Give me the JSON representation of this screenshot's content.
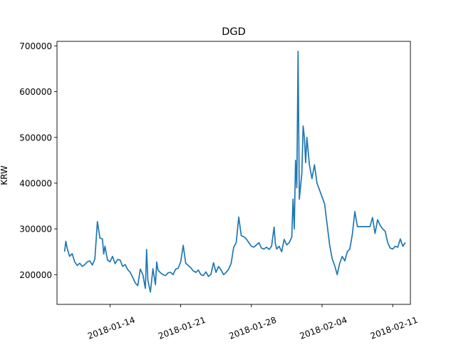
{
  "chart_data": {
    "type": "line",
    "title": "DGD",
    "xlabel": "",
    "ylabel": "KRW",
    "x_type": "date",
    "xlim": [
      "2018-01-08T18:00",
      "2018-02-12T18:00"
    ],
    "ylim": [
      135000,
      710000
    ],
    "x_ticks": [
      "2018-01-14",
      "2018-01-21",
      "2018-01-28",
      "2018-02-04",
      "2018-02-11"
    ],
    "y_ticks": [
      200000,
      300000,
      400000,
      500000,
      600000,
      700000
    ],
    "y_tick_labels": [
      "200000",
      "300000",
      "400000",
      "500000",
      "600000",
      "700000"
    ],
    "grid": false,
    "legend": "none",
    "line_color": "#1f77b4",
    "series": [
      {
        "x": [
          "2018-01-09T12:00",
          "2018-01-09T15:00",
          "2018-01-09T18:00",
          "2018-01-10T00:00",
          "2018-01-10T06:00",
          "2018-01-10T12:00",
          "2018-01-10T18:00",
          "2018-01-11T00:00",
          "2018-01-11T06:00",
          "2018-01-11T12:00",
          "2018-01-11T18:00",
          "2018-01-12T00:00",
          "2018-01-12T06:00",
          "2018-01-12T12:00",
          "2018-01-12T18:00",
          "2018-01-13T00:00",
          "2018-01-13T06:00",
          "2018-01-13T09:00",
          "2018-01-13T12:00",
          "2018-01-13T18:00",
          "2018-01-14T00:00",
          "2018-01-14T06:00",
          "2018-01-14T12:00",
          "2018-01-14T18:00",
          "2018-01-15T00:00",
          "2018-01-15T06:00",
          "2018-01-15T12:00",
          "2018-01-15T18:00",
          "2018-01-16T00:00",
          "2018-01-16T06:00",
          "2018-01-16T12:00",
          "2018-01-16T18:00",
          "2018-01-17T00:00",
          "2018-01-17T06:00",
          "2018-01-17T12:00",
          "2018-01-17T15:00",
          "2018-01-17T18:00",
          "2018-01-18T00:00",
          "2018-01-18T06:00",
          "2018-01-18T12:00",
          "2018-01-18T15:00",
          "2018-01-18T18:00",
          "2018-01-19T00:00",
          "2018-01-19T06:00",
          "2018-01-19T12:00",
          "2018-01-19T18:00",
          "2018-01-20T00:00",
          "2018-01-20T06:00",
          "2018-01-20T12:00",
          "2018-01-20T18:00",
          "2018-01-21T00:00",
          "2018-01-21T06:00",
          "2018-01-21T12:00",
          "2018-01-21T18:00",
          "2018-01-22T00:00",
          "2018-01-22T06:00",
          "2018-01-22T12:00",
          "2018-01-22T18:00",
          "2018-01-23T00:00",
          "2018-01-23T06:00",
          "2018-01-23T12:00",
          "2018-01-23T18:00",
          "2018-01-24T00:00",
          "2018-01-24T06:00",
          "2018-01-24T12:00",
          "2018-01-24T18:00",
          "2018-01-25T00:00",
          "2018-01-25T06:00",
          "2018-01-25T12:00",
          "2018-01-25T18:00",
          "2018-01-26T00:00",
          "2018-01-26T06:00",
          "2018-01-26T12:00",
          "2018-01-26T18:00",
          "2018-01-27T00:00",
          "2018-01-27T06:00",
          "2018-01-27T12:00",
          "2018-01-27T18:00",
          "2018-01-28T00:00",
          "2018-01-28T06:00",
          "2018-01-28T12:00",
          "2018-01-28T18:00",
          "2018-01-29T00:00",
          "2018-01-29T06:00",
          "2018-01-29T12:00",
          "2018-01-29T18:00",
          "2018-01-30T00:00",
          "2018-01-30T06:00",
          "2018-01-30T09:00",
          "2018-01-30T12:00",
          "2018-01-30T18:00",
          "2018-01-31T00:00",
          "2018-01-31T06:00",
          "2018-01-31T12:00",
          "2018-01-31T18:00",
          "2018-02-01T00:00",
          "2018-02-01T03:00",
          "2018-02-01T06:00",
          "2018-02-01T09:00",
          "2018-02-01T12:00",
          "2018-02-01T15:00",
          "2018-02-01T18:00",
          "2018-02-02T00:00",
          "2018-02-02T03:00",
          "2018-02-02T06:00",
          "2018-02-02T09:00",
          "2018-02-02T12:00",
          "2018-02-02T18:00",
          "2018-02-03T00:00",
          "2018-02-03T06:00",
          "2018-02-03T12:00",
          "2018-02-03T18:00",
          "2018-02-04T00:00",
          "2018-02-04T06:00",
          "2018-02-04T12:00",
          "2018-02-04T18:00",
          "2018-02-05T00:00",
          "2018-02-05T06:00",
          "2018-02-05T12:00",
          "2018-02-05T18:00",
          "2018-02-06T00:00",
          "2018-02-06T06:00",
          "2018-02-06T12:00",
          "2018-02-06T18:00",
          "2018-02-07T00:00",
          "2018-02-07T06:00",
          "2018-02-07T12:00",
          "2018-02-07T18:00",
          "2018-02-08T00:00",
          "2018-02-08T06:00",
          "2018-02-08T12:00",
          "2018-02-08T18:00",
          "2018-02-09T00:00",
          "2018-02-09T06:00",
          "2018-02-09T12:00",
          "2018-02-09T18:00",
          "2018-02-10T00:00",
          "2018-02-10T06:00",
          "2018-02-10T12:00",
          "2018-02-10T18:00",
          "2018-02-11T00:00",
          "2018-02-11T06:00",
          "2018-02-11T12:00",
          "2018-02-11T18:00",
          "2018-02-12T00:00",
          "2018-02-12T06:00"
        ],
        "y": [
          250000,
          273000,
          258000,
          240000,
          246000,
          228000,
          220000,
          225000,
          218000,
          222000,
          228000,
          230000,
          221000,
          234000,
          316000,
          280000,
          278000,
          245000,
          262000,
          232000,
          228000,
          240000,
          224000,
          233000,
          232000,
          218000,
          222000,
          211000,
          205000,
          194000,
          182000,
          176000,
          212000,
          200000,
          170000,
          255000,
          188000,
          162000,
          213000,
          178000,
          228000,
          210000,
          204000,
          200000,
          198000,
          204000,
          205000,
          200000,
          212000,
          214000,
          228000,
          264000,
          225000,
          220000,
          215000,
          208000,
          205000,
          210000,
          200000,
          198000,
          206000,
          196000,
          201000,
          226000,
          205000,
          218000,
          210000,
          200000,
          205000,
          212000,
          225000,
          260000,
          270000,
          326000,
          285000,
          283000,
          278000,
          270000,
          262000,
          260000,
          265000,
          270000,
          258000,
          256000,
          260000,
          255000,
          262000,
          304000,
          268000,
          256000,
          262000,
          250000,
          277000,
          265000,
          270000,
          282000,
          365000,
          300000,
          450000,
          390000,
          688000,
          365000,
          422000,
          525000,
          500000,
          445000,
          500000,
          440000,
          410000,
          440000,
          400000,
          385000,
          370000,
          355000,
          310000,
          265000,
          235000,
          220000,
          200000,
          225000,
          240000,
          230000,
          250000,
          256000,
          288000,
          338000,
          305000,
          305000,
          305000,
          305000,
          305000,
          305000,
          325000,
          290000,
          320000,
          308000,
          300000,
          295000,
          270000,
          258000,
          256000,
          262000,
          260000,
          278000,
          262000,
          270000
        ]
      }
    ]
  }
}
